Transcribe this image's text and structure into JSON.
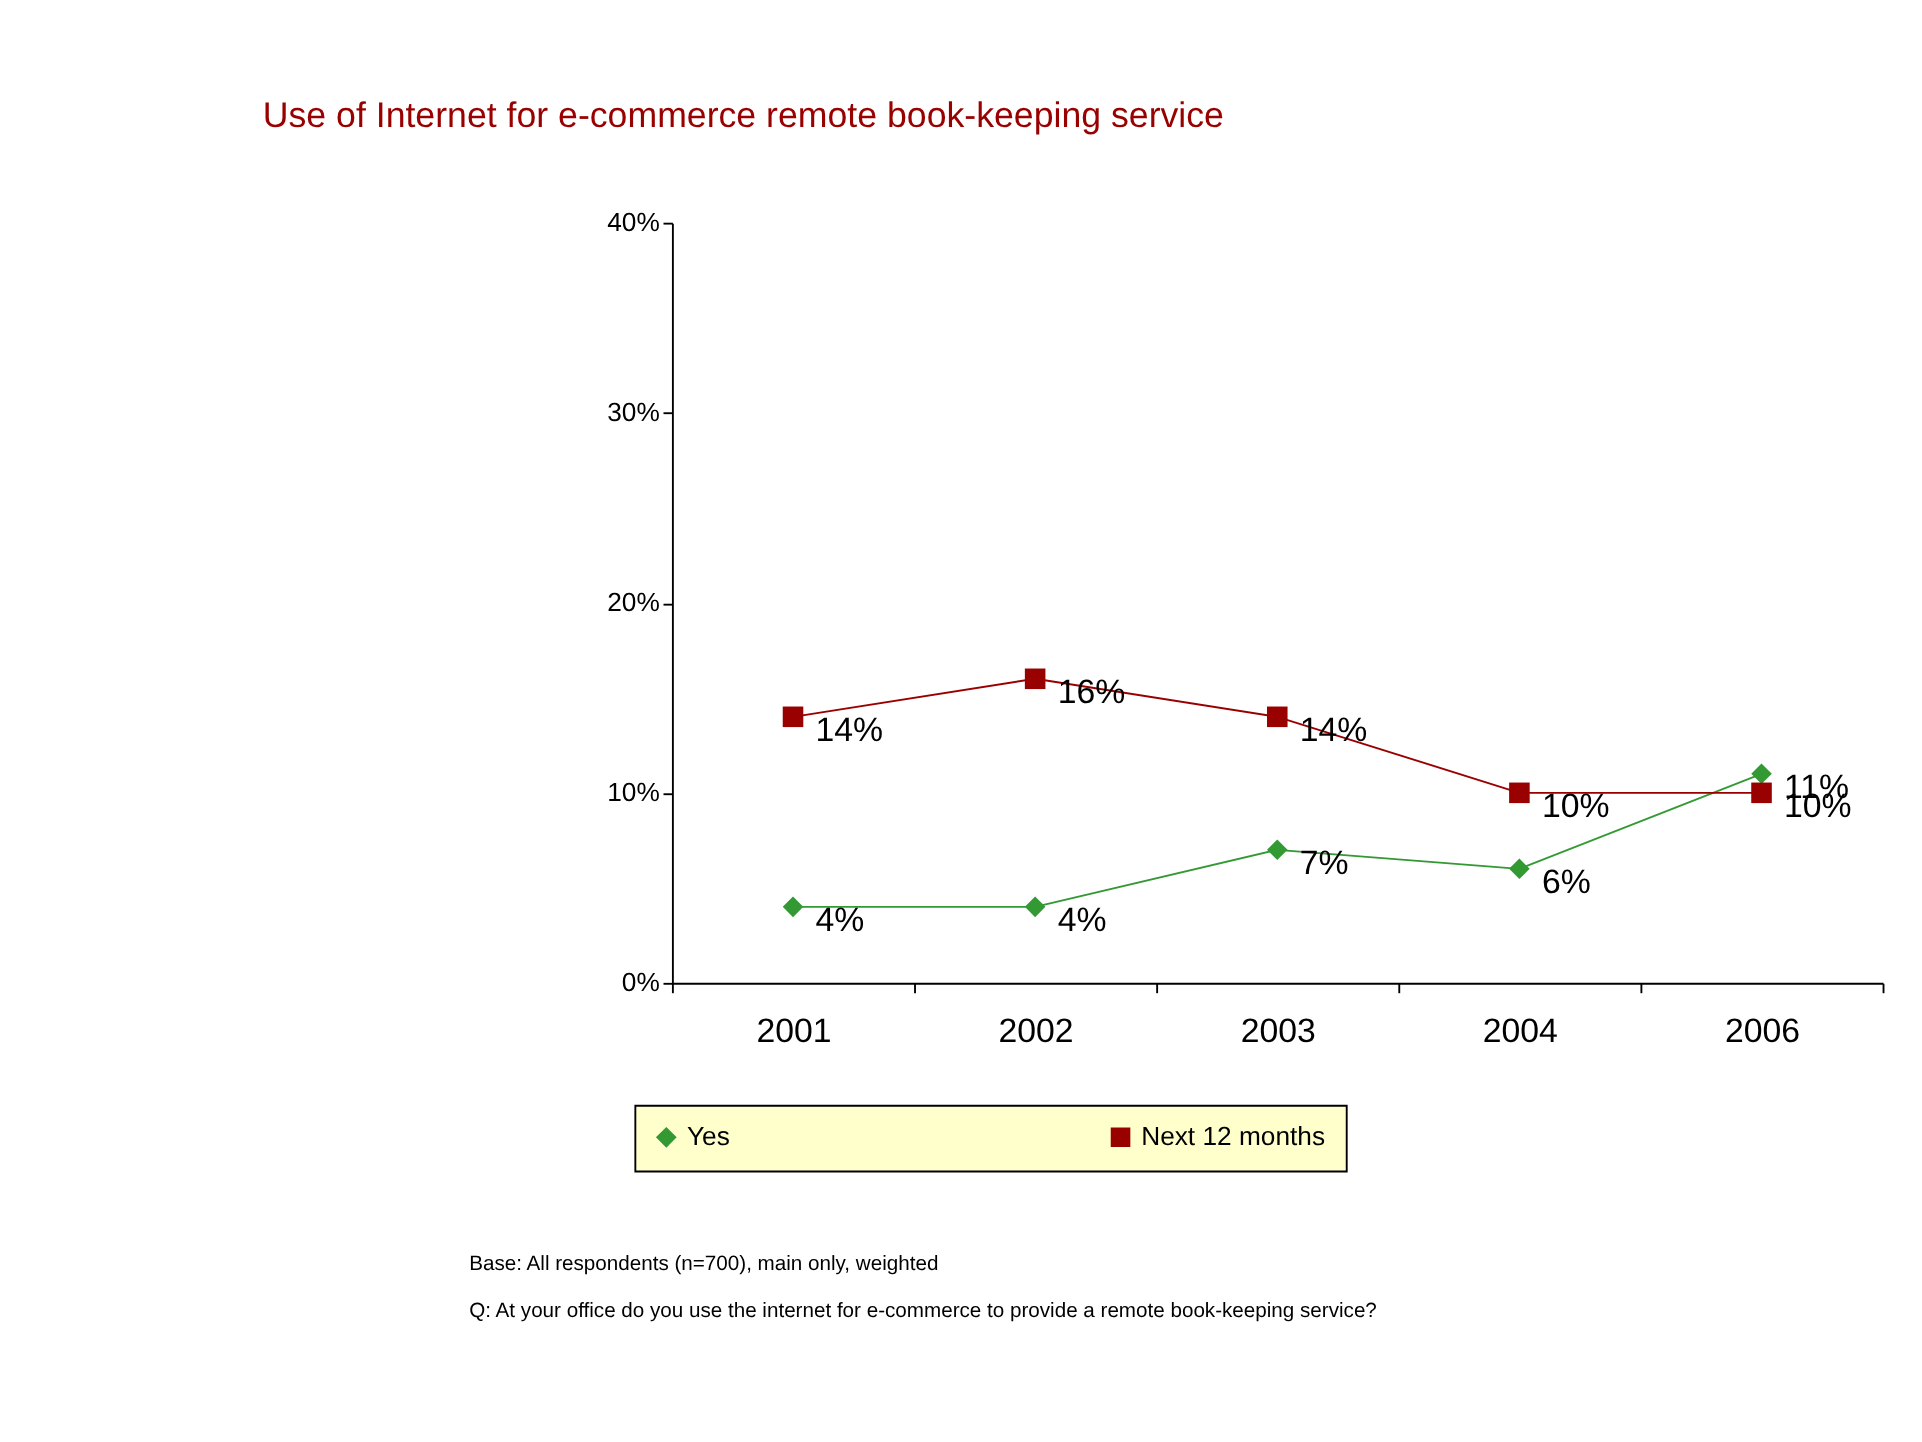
{
  "chart_data": {
    "type": "line",
    "title": "Use of Internet for e-commerce remote book-keeping service",
    "categories": [
      "2001",
      "2002",
      "2003",
      "2004",
      "2006"
    ],
    "series": [
      {
        "name": "Yes",
        "color": "#339933",
        "marker": "diamond",
        "values": [
          4,
          4,
          7,
          6,
          11
        ],
        "value_labels": [
          "4%",
          "4%",
          "7%",
          "6%",
          "11%"
        ]
      },
      {
        "name": "Next 12 months",
        "color": "#990000",
        "marker": "square",
        "values": [
          14,
          16,
          14,
          10,
          10
        ],
        "value_labels": [
          "14%",
          "16%",
          "14%",
          "10%",
          "10%"
        ]
      }
    ],
    "ylim": [
      0,
      40
    ],
    "yticks": [
      {
        "value": 0,
        "label": "0%"
      },
      {
        "value": 10,
        "label": "10%"
      },
      {
        "value": 20,
        "label": "20%"
      },
      {
        "value": 30,
        "label": "30%"
      },
      {
        "value": 40,
        "label": "40%"
      }
    ],
    "grid": false,
    "legend": "bottom",
    "line_style": "solid",
    "annotations": [
      "Base: All respondents (n=700), main only, weighted",
      "Q: At your office do you use the internet for e-commerce to provide a remote book-keeping service?"
    ]
  }
}
